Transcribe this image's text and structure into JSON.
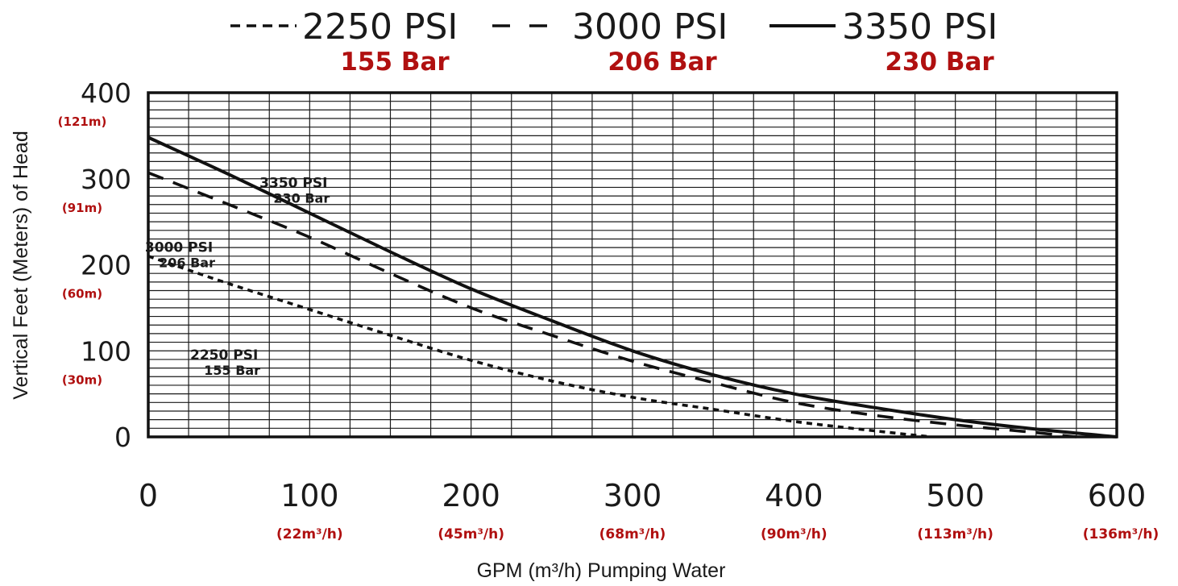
{
  "chart_data": {
    "type": "line",
    "x_unit_label": "GPM (m³/h) Pumping Water",
    "y_unit_label": "Vertical Feet (Meters) of Head",
    "xlim": [
      0,
      600
    ],
    "ylim": [
      0,
      400
    ],
    "grid": true,
    "accent_color": "#b01010",
    "x_ticks": [
      {
        "value": 0,
        "label": "0",
        "sub": ""
      },
      {
        "value": 100,
        "label": "100",
        "sub": "(22m³/h)"
      },
      {
        "value": 200,
        "label": "200",
        "sub": "(45m³/h)"
      },
      {
        "value": 300,
        "label": "300",
        "sub": "(68m³/h)"
      },
      {
        "value": 400,
        "label": "400",
        "sub": "(90m³/h)"
      },
      {
        "value": 500,
        "label": "500",
        "sub": "(113m³/h)"
      },
      {
        "value": 600,
        "label": "600",
        "sub": "(136m³/h)"
      }
    ],
    "y_ticks": [
      {
        "value": 0,
        "label": "0",
        "sub": ""
      },
      {
        "value": 100,
        "label": "100",
        "sub": "(30m)"
      },
      {
        "value": 200,
        "label": "200",
        "sub": "(60m)"
      },
      {
        "value": 300,
        "label": "300",
        "sub": "(91m)"
      },
      {
        "value": 400,
        "label": "400",
        "sub": "(121m)"
      }
    ],
    "legend": {
      "placement": "top",
      "items": [
        {
          "psi": "2250 PSI",
          "bar": "155 Bar",
          "style": "dotted"
        },
        {
          "psi": "3000 PSI",
          "bar": "206 Bar",
          "style": "dashed"
        },
        {
          "psi": "3350 PSI",
          "bar": "230 Bar",
          "style": "solid"
        }
      ]
    },
    "series": [
      {
        "name": "2250 PSI",
        "sub": "155 Bar",
        "style": "dotted",
        "x": [
          0,
          50,
          100,
          150,
          200,
          250,
          300,
          350,
          400,
          450,
          485
        ],
        "y": [
          210,
          178,
          148,
          118,
          89,
          65,
          46,
          32,
          18,
          7,
          0
        ]
      },
      {
        "name": "3000 PSI",
        "sub": "206 Bar",
        "style": "dashed",
        "x": [
          0,
          50,
          100,
          150,
          200,
          250,
          300,
          350,
          400,
          450,
          500,
          550,
          575
        ],
        "y": [
          307,
          270,
          232,
          190,
          150,
          118,
          88,
          63,
          40,
          25,
          14,
          5,
          0
        ]
      },
      {
        "name": "3350 PSI",
        "sub": "230 Bar",
        "style": "solid",
        "x": [
          0,
          50,
          100,
          150,
          200,
          250,
          300,
          350,
          400,
          450,
          500,
          550,
          600
        ],
        "y": [
          348,
          305,
          260,
          215,
          172,
          135,
          100,
          72,
          50,
          34,
          20,
          9,
          0
        ]
      }
    ],
    "curve_labels": [
      {
        "series": "3350 PSI",
        "psi": "3350 PSI",
        "bar": "230 Bar",
        "x": 90,
        "y": 290
      },
      {
        "series": "3000 PSI",
        "psi": "3000 PSI",
        "bar": "206 Bar",
        "x": 19,
        "y": 215
      },
      {
        "series": "2250 PSI",
        "psi": "2250 PSI",
        "bar": "155 Bar",
        "x": 47,
        "y": 90
      }
    ]
  }
}
